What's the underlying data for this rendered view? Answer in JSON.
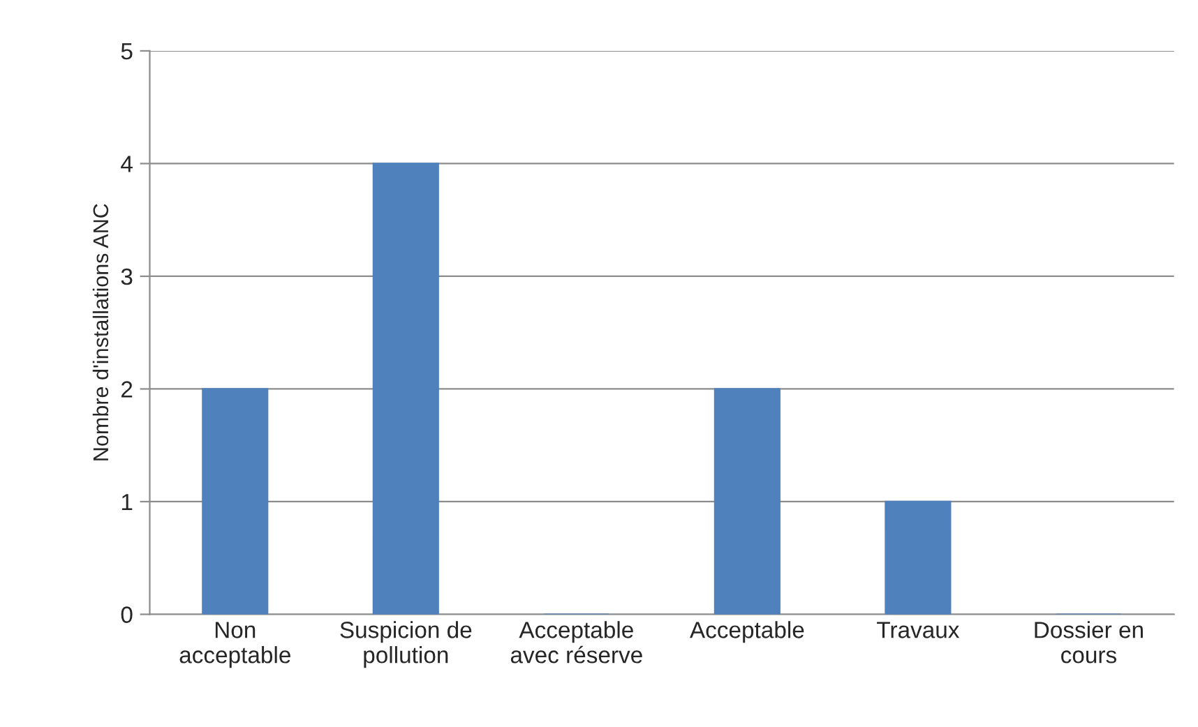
{
  "chart_data": {
    "type": "bar",
    "ylabel": "Nombre d'installations ANC",
    "categories": [
      "Non\nacceptable",
      "Suspicion de\npollution",
      "Acceptable\navec réserve",
      "Acceptable",
      "Travaux",
      "Dossier en\ncours"
    ],
    "values": [
      2,
      4,
      0,
      2,
      1,
      0
    ],
    "color": "#4f81bd",
    "ylim": [
      0,
      5
    ],
    "yticks": [
      0,
      1,
      2,
      3,
      4,
      5
    ],
    "grid": "y",
    "legend": false
  }
}
